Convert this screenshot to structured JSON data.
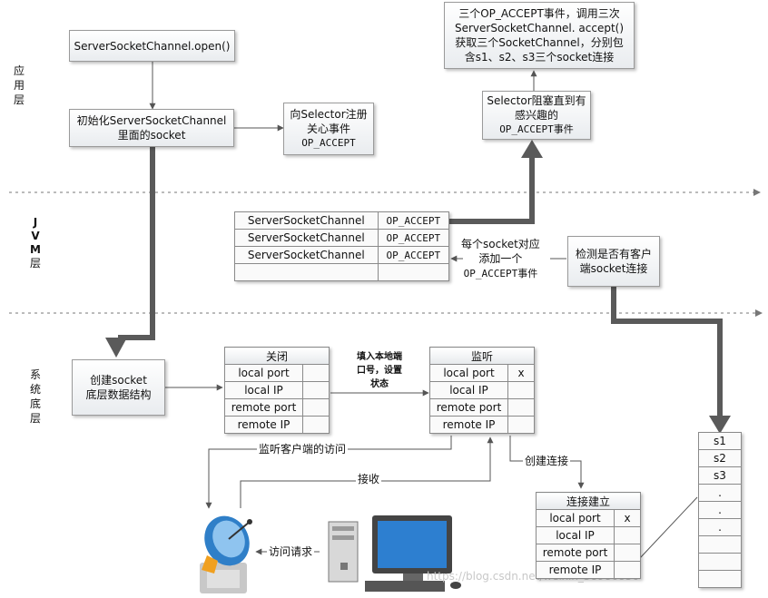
{
  "layers": {
    "app": [
      "应",
      "用",
      "层"
    ],
    "jvm": [
      "J",
      "V",
      "M",
      "层"
    ],
    "sys": [
      "系",
      "统",
      "底",
      "层"
    ]
  },
  "boxes": {
    "open": "ServerSocketChannel.open()",
    "init": [
      "初始化ServerSocketChannel",
      "里面的socket"
    ],
    "register": [
      "向Selector注册",
      "关心事件",
      "OP_ACCEPT"
    ],
    "accept3": [
      "三个OP_ACCEPT事件，调用三次",
      "ServerSocketChannel. accept()",
      "获取三个SocketChannel，分别包",
      "含s1、s2、s3三个socket连接"
    ],
    "selector": [
      "Selector阻塞直到有",
      "感兴趣的",
      "OP_ACCEPT事件"
    ],
    "detect": [
      "检测是否有客户",
      "端socket连接"
    ],
    "create_socket": [
      "创建socket",
      "底层数据结构"
    ]
  },
  "jvm_table": {
    "rows": [
      [
        "ServerSocketChannel",
        "OP_ACCEPT"
      ],
      [
        "ServerSocketChannel",
        "OP_ACCEPT"
      ],
      [
        "ServerSocketChannel",
        "OP_ACCEPT"
      ],
      [
        "",
        ""
      ]
    ]
  },
  "event_note": [
    "每个socket对应",
    "添加一个",
    "OP_ACCEPT事件"
  ],
  "closed_table": {
    "title": "关闭",
    "rows": [
      "local  port",
      "local  IP",
      "remote  port",
      "remote  IP"
    ]
  },
  "listen_table": {
    "title": "监听",
    "rows": [
      "local  port",
      "local  IP",
      "remote  port",
      "remote  IP"
    ],
    "mark": "x"
  },
  "established_table": {
    "title": "连接建立",
    "rows": [
      "local  port",
      "local  IP",
      "remote  port",
      "remote  IP"
    ],
    "mark": "x"
  },
  "bind_note": [
    "填入本地端",
    "口号，设置",
    "状态"
  ],
  "labels": {
    "listen_client": "监听客户端的访问",
    "receive": "接收",
    "create_conn": "创建连接",
    "access_request": "访问请求"
  },
  "queue": [
    "s1",
    "s2",
    "s3",
    ".",
    ".",
    ".",
    "",
    "",
    "",
    ""
  ],
  "watermark": "https://blog.csdn.net/weixin_38986856",
  "colors": {
    "thick_arrow": "#5a5a5a",
    "thin_arrow": "#555555",
    "dash": "#777777"
  }
}
